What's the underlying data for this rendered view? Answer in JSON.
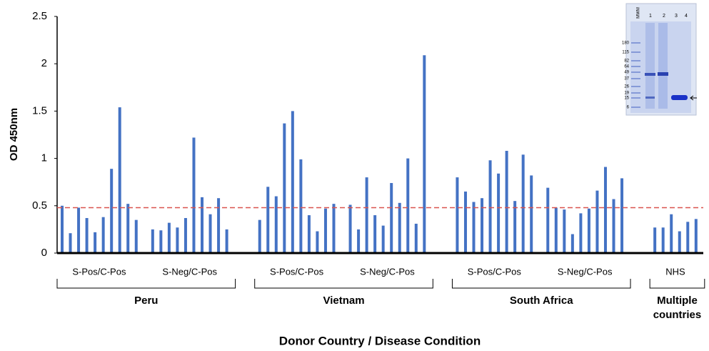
{
  "chart_data": {
    "type": "bar",
    "y_label": "OD 450nm",
    "x_label": "Donor Country / Disease Condition",
    "ylim": [
      0,
      2.5
    ],
    "yticks": [
      0,
      0.5,
      1,
      1.5,
      2,
      2.5
    ],
    "color": "#4472c4",
    "threshold": 0.48,
    "threshold_color": "#d9534f",
    "groups": [
      {
        "label": "Peru",
        "subgroups": [
          {
            "label": "S-Pos/C-Pos",
            "values": [
              0.5,
              0.21,
              0.48,
              0.37,
              0.22,
              0.38,
              0.89,
              1.54,
              0.52,
              0.35
            ]
          },
          {
            "label": "S-Neg/C-Pos",
            "values": [
              0.25,
              0.24,
              0.32,
              0.27,
              0.37,
              1.22,
              0.59,
              0.41,
              0.58,
              0.25
            ]
          }
        ]
      },
      {
        "label": "Vietnam",
        "subgroups": [
          {
            "label": "S-Pos/C-Pos",
            "values": [
              0.35,
              0.7,
              0.6,
              1.37,
              1.5,
              0.99,
              0.4,
              0.23,
              0.47,
              0.52
            ]
          },
          {
            "label": "S-Neg/C-Pos",
            "values": [
              0.51,
              0.25,
              0.8,
              0.4,
              0.29,
              0.74,
              0.53,
              1.0,
              0.31,
              2.09
            ]
          }
        ]
      },
      {
        "label": "South Africa",
        "subgroups": [
          {
            "label": "S-Pos/C-Pos",
            "values": [
              0.8,
              0.65,
              0.54,
              0.58,
              0.98,
              0.84,
              1.08,
              0.55,
              1.04,
              0.82
            ]
          },
          {
            "label": "S-Neg/C-Pos",
            "values": [
              0.69,
              0.48,
              0.46,
              0.2,
              0.42,
              0.47,
              0.66,
              0.91,
              0.57,
              0.79
            ]
          }
        ]
      },
      {
        "label": "Multiple countries",
        "subgroups": [
          {
            "label": "NHS",
            "values": [
              0.27,
              0.27,
              0.41,
              0.23,
              0.33,
              0.36
            ]
          }
        ]
      }
    ],
    "inset": {
      "lane_labels": [
        "MWM",
        "1",
        "2",
        "3",
        "4"
      ],
      "marker_labels": [
        "180",
        "115",
        "82",
        "64",
        "49",
        "37",
        "26",
        "19",
        "15",
        "6"
      ]
    }
  }
}
